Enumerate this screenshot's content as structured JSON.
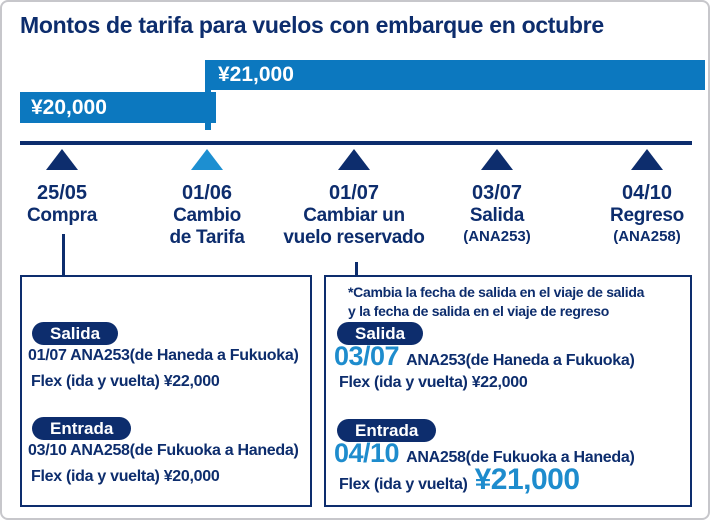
{
  "colors": {
    "navy": "#0d2d6d",
    "bar_blue": "#0c78bf",
    "accent_blue": "#1e8ccd",
    "card_border": "#c7c7cb",
    "white": "#ffffff"
  },
  "title": "Montos de tarifa para vuelos con embarque en octubre",
  "bars": {
    "high": "¥21,000",
    "low": "¥20,000"
  },
  "timeline": {
    "events": [
      {
        "date": "25/05",
        "lines": [
          "Compra"
        ]
      },
      {
        "date": "01/06",
        "lines": [
          "Cambio",
          "de Tarifa"
        ]
      },
      {
        "date": "01/07",
        "lines": [
          "Cambiar un",
          "vuelo reservado"
        ]
      },
      {
        "date": "03/07",
        "lines": [
          "Salida",
          "(ANA253)"
        ]
      },
      {
        "date": "04/10",
        "lines": [
          "Regreso",
          "(ANA258)"
        ]
      }
    ]
  },
  "left_box": {
    "outbound_badge": "Salida",
    "outbound_flight": "01/07 ANA253(de Haneda a Fukuoka)",
    "outbound_fare": "Flex (ida y vuelta)  ¥22,000",
    "inbound_badge": "Entrada",
    "inbound_flight": "03/10 ANA258(de Fukuoka a Haneda)",
    "inbound_fare": "Flex (ida y vuelta)  ¥20,000"
  },
  "right_box": {
    "note_line1": "*Cambia la fecha de salida en el viaje de salida",
    "note_line2": "y la fecha de salida en el viaje de regreso",
    "outbound_badge": "Salida",
    "outbound_date": "03/07",
    "outbound_flight": "ANA253(de Haneda a Fukuoka)",
    "outbound_fare": "Flex (ida y vuelta) ¥22,000",
    "inbound_badge": "Entrada",
    "inbound_date": "04/10",
    "inbound_flight": "ANA258(de Fukuoka a Haneda)",
    "inbound_fare_label": "Flex (ida y vuelta)",
    "inbound_fare_amount": "¥21,000"
  }
}
